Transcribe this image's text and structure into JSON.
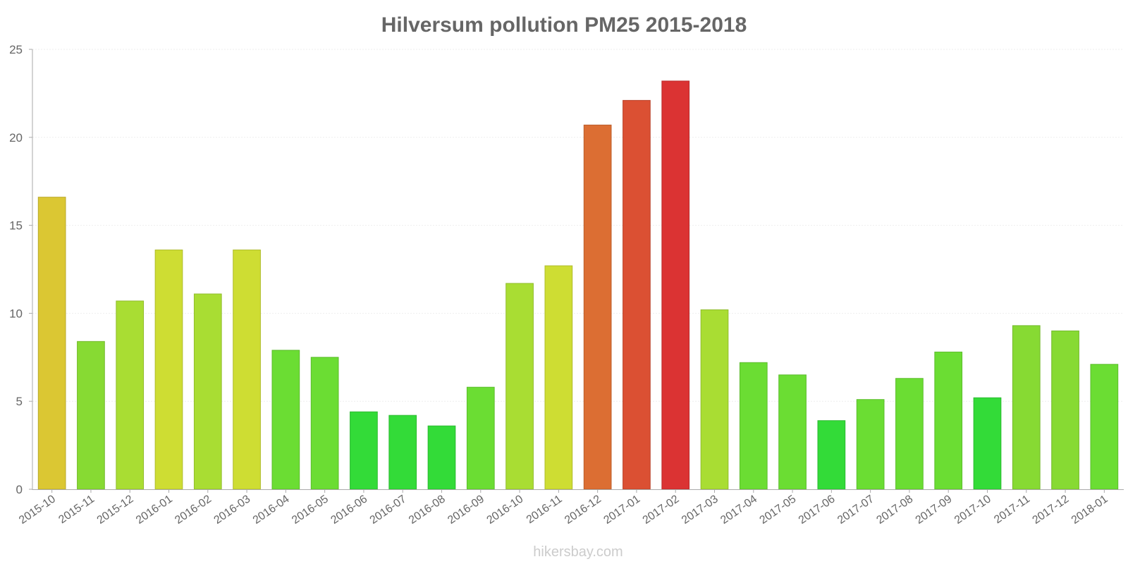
{
  "chart_data": {
    "type": "bar",
    "title": "Hilversum pollution PM25 2015-2018",
    "xlabel": "",
    "ylabel": "",
    "ylim": [
      0,
      25
    ],
    "yticks": [
      0,
      5,
      10,
      15,
      20,
      25
    ],
    "grid": true,
    "categories": [
      "2015-10",
      "2015-11",
      "2015-12",
      "2016-01",
      "2016-02",
      "2016-03",
      "2016-04",
      "2016-05",
      "2016-06",
      "2016-07",
      "2016-08",
      "2016-09",
      "2016-10",
      "2016-11",
      "2016-12",
      "2017-01",
      "2017-02",
      "2017-03",
      "2017-04",
      "2017-05",
      "2017-06",
      "2017-07",
      "2017-08",
      "2017-09",
      "2017-10",
      "2017-11",
      "2017-12",
      "2018-01"
    ],
    "values": [
      16.6,
      8.4,
      10.7,
      13.6,
      11.1,
      13.6,
      7.9,
      7.5,
      4.4,
      4.2,
      3.6,
      5.8,
      11.7,
      12.7,
      20.7,
      22.1,
      23.2,
      10.2,
      7.2,
      6.5,
      3.9,
      5.1,
      6.3,
      7.8,
      5.2,
      9.3,
      9.0,
      7.1
    ],
    "colors": [
      "#dbc733",
      "#87da33",
      "#a9dd33",
      "#cedd33",
      "#a9dd33",
      "#cedd33",
      "#6bdd33",
      "#6bdd33",
      "#33db38",
      "#33db38",
      "#33db38",
      "#6bdd33",
      "#a9dd33",
      "#cedd33",
      "#dc6e33",
      "#db5033",
      "#db3333",
      "#a9dd33",
      "#6bdd33",
      "#6bdd33",
      "#33db38",
      "#6bdd33",
      "#6bdd33",
      "#6bdd33",
      "#33db38",
      "#87da33",
      "#87da33",
      "#6bdd33"
    ]
  },
  "watermark": "hikersbay.com"
}
